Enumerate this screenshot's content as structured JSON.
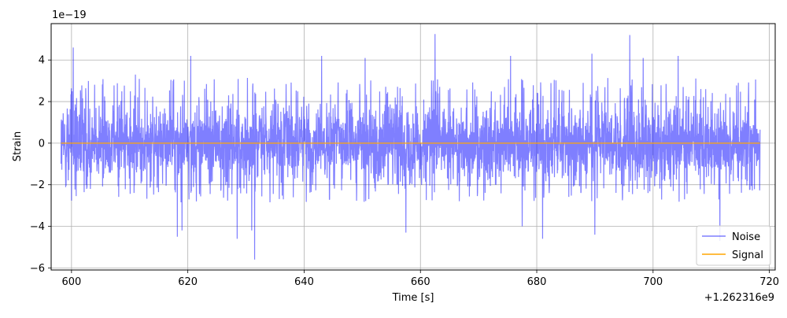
{
  "chart_data": {
    "type": "line",
    "xlabel": "Time [s]",
    "ylabel": "Strain",
    "x_offset_label": "+1.262316e9",
    "y_scale_label": "1e−19",
    "xlim": [
      596.5,
      721.0
    ],
    "ylim": [
      -6.1,
      5.75
    ],
    "x_ticks": [
      600,
      620,
      640,
      660,
      680,
      700,
      720
    ],
    "x_tick_labels": [
      "600",
      "620",
      "640",
      "660",
      "680",
      "700",
      "720"
    ],
    "y_ticks": [
      -6,
      -4,
      -2,
      0,
      2,
      4
    ],
    "y_tick_labels": [
      "−6",
      "−4",
      "−2",
      "0",
      "2",
      "4"
    ],
    "grid": true,
    "legend_position": "lower-right",
    "series": [
      {
        "name": "Noise",
        "color": "#0000ff",
        "opacity": 0.5,
        "x_range": [
          598.2,
          718.4
        ],
        "typical_envelope": [
          -2.6,
          2.9
        ],
        "peaks": [
          {
            "x": 600.3,
            "y": 4.6
          },
          {
            "x": 611.0,
            "y": 3.3
          },
          {
            "x": 618.2,
            "y": -4.5
          },
          {
            "x": 619.0,
            "y": -4.2
          },
          {
            "x": 620.5,
            "y": 4.2
          },
          {
            "x": 628.5,
            "y": -4.6
          },
          {
            "x": 631.0,
            "y": -4.2
          },
          {
            "x": 631.5,
            "y": -5.6
          },
          {
            "x": 643.0,
            "y": 4.2
          },
          {
            "x": 650.5,
            "y": 4.1
          },
          {
            "x": 657.5,
            "y": -4.3
          },
          {
            "x": 662.5,
            "y": 5.25
          },
          {
            "x": 675.5,
            "y": 4.2
          },
          {
            "x": 677.5,
            "y": -4.0
          },
          {
            "x": 681.0,
            "y": -4.6
          },
          {
            "x": 689.5,
            "y": 4.3
          },
          {
            "x": 690.0,
            "y": -4.4
          },
          {
            "x": 696.0,
            "y": 5.2
          },
          {
            "x": 698.3,
            "y": 4.1
          },
          {
            "x": 704.3,
            "y": 4.2
          },
          {
            "x": 711.5,
            "y": -4.7
          }
        ]
      },
      {
        "name": "Signal",
        "color": "#ffa500",
        "x_range": [
          598.2,
          718.4
        ],
        "value": 0
      }
    ]
  }
}
